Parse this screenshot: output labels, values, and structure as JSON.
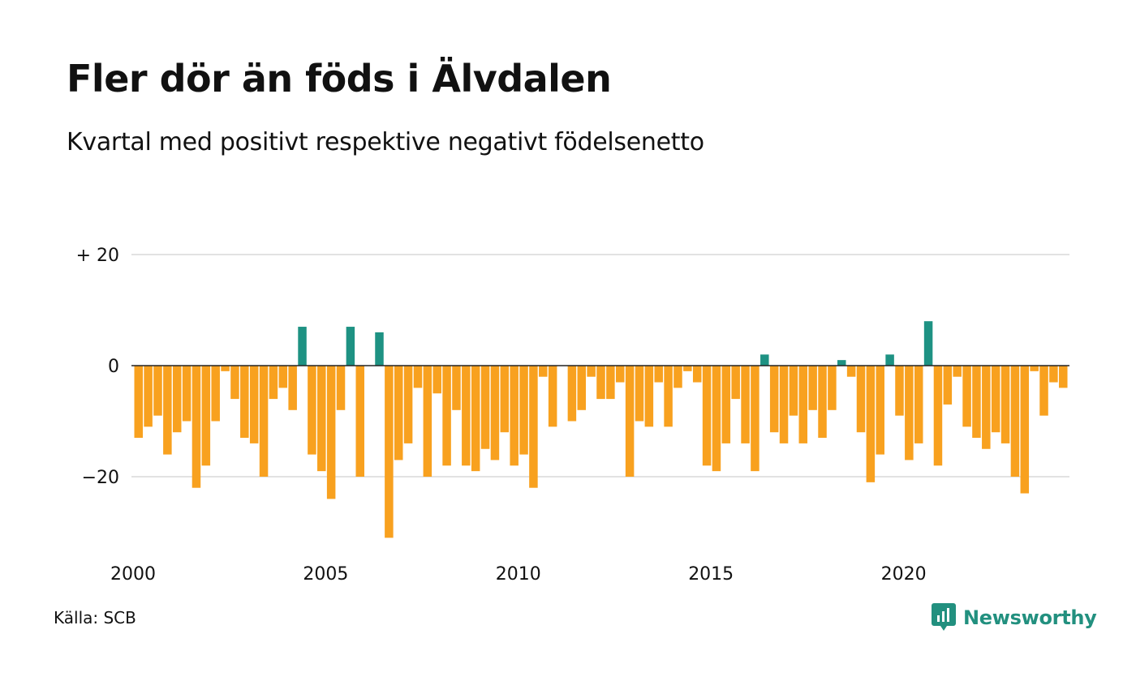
{
  "chart_data": {
    "type": "bar",
    "title": "Fler dör än föds i Älvdalen",
    "subtitle": "Kvartal med positivt respektive negativt födelsenetto",
    "source": "Källa: SCB",
    "brand": "Newsworthy",
    "colors": {
      "positive": "#1e9283",
      "negative": "#f8a11f",
      "brand": "#22907f"
    },
    "y_ticks": [
      {
        "value": 20,
        "label": "+ 20"
      },
      {
        "value": 0,
        "label": "0"
      },
      {
        "value": -20,
        "label": "−20"
      }
    ],
    "ylim": [
      -32,
      20
    ],
    "grid": true,
    "x_ticks": [
      {
        "value": 2000,
        "label": "2000"
      },
      {
        "value": 2005,
        "label": "2005"
      },
      {
        "value": 2010,
        "label": "2010"
      },
      {
        "value": 2015,
        "label": "2015"
      },
      {
        "value": 2020,
        "label": "2020"
      }
    ],
    "start_year": 2000,
    "x_unit": "quarter",
    "values": [
      -13,
      -11,
      -9,
      -16,
      -12,
      -10,
      -22,
      -18,
      -10,
      -1,
      -6,
      -13,
      -14,
      -20,
      -6,
      -4,
      -8,
      7,
      -16,
      -19,
      -24,
      -8,
      7,
      -20,
      0,
      6,
      -31,
      -17,
      -14,
      -4,
      -20,
      -5,
      -18,
      -8,
      -18,
      -19,
      -15,
      -17,
      -12,
      -18,
      -16,
      -22,
      -2,
      -11,
      0,
      -10,
      -8,
      -2,
      -6,
      -6,
      -3,
      -20,
      -10,
      -11,
      -3,
      -11,
      -4,
      -1,
      -3,
      -18,
      -19,
      -14,
      -6,
      -14,
      -19,
      2,
      -12,
      -14,
      -9,
      -14,
      -8,
      -13,
      -8,
      1,
      -2,
      -12,
      -21,
      -16,
      2,
      -9,
      -17,
      -14,
      8,
      -18,
      -7,
      -2,
      -11,
      -13,
      -15,
      -12,
      -14,
      -20,
      -23,
      -1,
      -9,
      -3,
      -4
    ]
  }
}
